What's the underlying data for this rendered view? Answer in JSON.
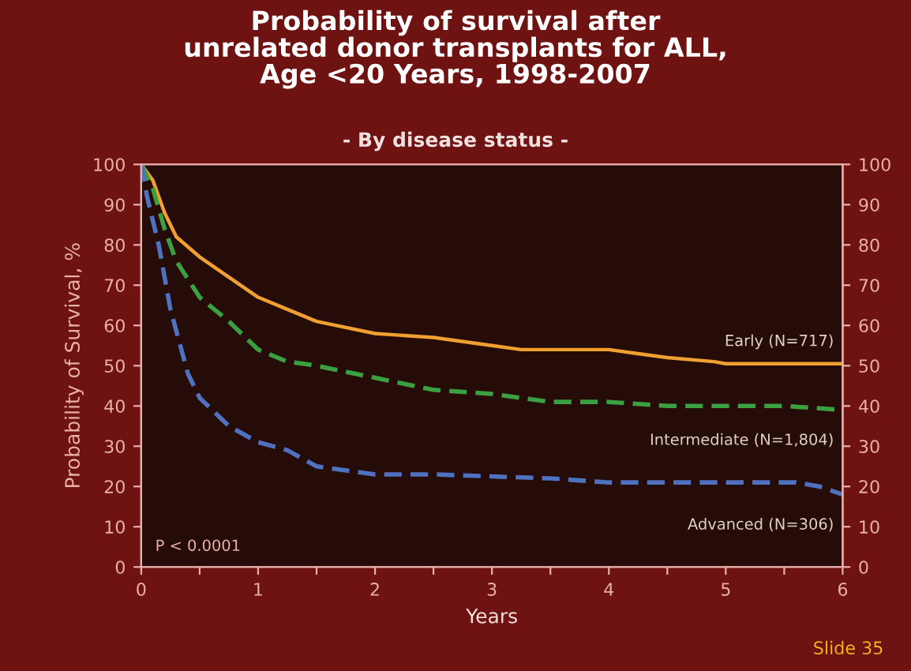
{
  "chart_data": {
    "type": "line",
    "title": "Probability of survival after\nunrelated donor transplants for ALL,\nAge <20 Years, 1998-2007",
    "subtitle": "- By disease status -",
    "xlabel": "Years",
    "ylabel": "Probability of Survival, %",
    "xlim": [
      0,
      6
    ],
    "xticks": [
      0,
      {
        "value": 0.5,
        "label": null
      },
      1,
      {
        "value": 1.5,
        "label": null
      },
      2,
      {
        "value": 2.5,
        "label": null
      },
      3,
      {
        "value": 3.5,
        "label": null
      },
      4,
      {
        "value": 4.5,
        "label": null
      },
      5,
      {
        "value": 5.5,
        "label": null
      },
      6
    ],
    "ylim": [
      0,
      100
    ],
    "yticks": [
      0,
      10,
      20,
      30,
      40,
      50,
      60,
      70,
      80,
      90,
      100
    ],
    "y2lim": [
      0,
      100
    ],
    "y2ticks": [
      0,
      10,
      20,
      30,
      40,
      50,
      60,
      70,
      80,
      90,
      100
    ],
    "grid": false,
    "legend": false,
    "series": [
      {
        "name": "Early (N=717)",
        "color": "#f0a030",
        "line_style": "solid",
        "x": [
          0,
          0.1,
          0.2,
          0.3,
          0.5,
          0.75,
          1,
          1.25,
          1.5,
          2,
          2.5,
          3,
          3.25,
          4,
          4.25,
          4.5,
          4.9,
          5,
          6
        ],
        "values": [
          100,
          96,
          88,
          82,
          77,
          72,
          67,
          64,
          61,
          58,
          57,
          55,
          54,
          54,
          53,
          52,
          51,
          50.5,
          50.5
        ]
      },
      {
        "name": "Intermediate (N=1,804)",
        "color": "#3aa040",
        "line_style": "dashed",
        "x": [
          0,
          0.1,
          0.2,
          0.3,
          0.5,
          0.75,
          1,
          1.25,
          1.5,
          2,
          2.5,
          3,
          3.5,
          4,
          4.5,
          5,
          5.5,
          6
        ],
        "values": [
          100,
          94,
          84,
          76,
          67,
          61,
          54,
          51,
          50,
          47,
          44,
          43,
          41,
          41,
          40,
          40,
          40,
          39
        ]
      },
      {
        "name": "Advanced (N=306)",
        "color": "#5070c0",
        "line_style": "dashed",
        "x": [
          0,
          0.05,
          0.15,
          0.25,
          0.4,
          0.5,
          0.75,
          1,
          1.25,
          1.5,
          2,
          2.5,
          3,
          3.5,
          4,
          5,
          5.6,
          5.8,
          6
        ],
        "values": [
          100,
          92,
          80,
          64,
          48,
          42,
          35,
          31,
          29,
          25,
          23,
          23,
          22.5,
          22,
          21,
          21,
          21,
          20,
          18
        ]
      }
    ],
    "annotations": [
      "P < 0.0001",
      "Slide 35"
    ]
  }
}
